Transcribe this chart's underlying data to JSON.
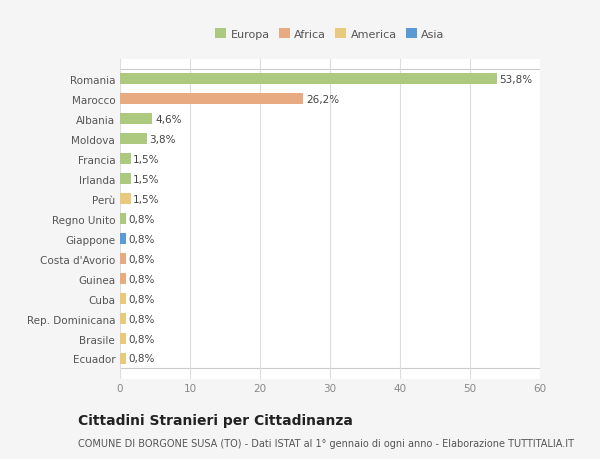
{
  "categories": [
    "Romania",
    "Marocco",
    "Albania",
    "Moldova",
    "Francia",
    "Irlanda",
    "Perù",
    "Regno Unito",
    "Giappone",
    "Costa d'Avorio",
    "Guinea",
    "Cuba",
    "Rep. Dominicana",
    "Brasile",
    "Ecuador"
  ],
  "values": [
    53.8,
    26.2,
    4.6,
    3.8,
    1.5,
    1.5,
    1.5,
    0.8,
    0.8,
    0.8,
    0.8,
    0.8,
    0.8,
    0.8,
    0.8
  ],
  "labels": [
    "53,8%",
    "26,2%",
    "4,6%",
    "3,8%",
    "1,5%",
    "1,5%",
    "1,5%",
    "0,8%",
    "0,8%",
    "0,8%",
    "0,8%",
    "0,8%",
    "0,8%",
    "0,8%",
    "0,8%"
  ],
  "continents": [
    "Europa",
    "Africa",
    "Europa",
    "Europa",
    "Europa",
    "Europa",
    "America",
    "Europa",
    "Asia",
    "Africa",
    "Africa",
    "America",
    "America",
    "America",
    "America"
  ],
  "continent_colors": {
    "Europa": "#adc97f",
    "Africa": "#e8aa80",
    "America": "#e8c97e",
    "Asia": "#5b9bd5"
  },
  "legend_items": [
    "Europa",
    "Africa",
    "America",
    "Asia"
  ],
  "legend_colors": [
    "#adc97f",
    "#e8aa80",
    "#e8c97e",
    "#5b9bd5"
  ],
  "xlim": [
    0,
    60
  ],
  "xticks": [
    0,
    10,
    20,
    30,
    40,
    50,
    60
  ],
  "title": "Cittadini Stranieri per Cittadinanza",
  "subtitle": "COMUNE DI BORGONE SUSA (TO) - Dati ISTAT al 1° gennaio di ogni anno - Elaborazione TUTTITALIA.IT",
  "plot_bg_color": "#ffffff",
  "fig_bg_color": "#f5f5f5",
  "bar_height": 0.55,
  "label_fontsize": 7.5,
  "ytick_fontsize": 7.5,
  "xtick_fontsize": 7.5,
  "title_fontsize": 10,
  "subtitle_fontsize": 7
}
